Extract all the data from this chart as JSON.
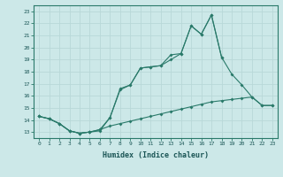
{
  "xlabel": "Humidex (Indice chaleur)",
  "bg_color": "#cce8e8",
  "grid_color": "#b8d8d8",
  "line_color": "#2a7a6a",
  "xlim": [
    -0.5,
    23.5
  ],
  "ylim": [
    12.5,
    23.5
  ],
  "xticks": [
    0,
    1,
    2,
    3,
    4,
    5,
    6,
    7,
    8,
    9,
    10,
    11,
    12,
    13,
    14,
    15,
    16,
    17,
    18,
    19,
    20,
    21,
    22,
    23
  ],
  "yticks": [
    13,
    14,
    15,
    16,
    17,
    18,
    19,
    20,
    21,
    22,
    23
  ],
  "line1_x": [
    0,
    1,
    2,
    3,
    4,
    5,
    6,
    7,
    8,
    9,
    10,
    11,
    12,
    13,
    14,
    15,
    16,
    17,
    18
  ],
  "line1_y": [
    14.3,
    14.1,
    13.7,
    13.1,
    12.9,
    13.0,
    13.1,
    14.2,
    16.6,
    16.9,
    18.3,
    18.4,
    18.5,
    19.4,
    19.5,
    21.8,
    21.1,
    22.7,
    19.2
  ],
  "line2_x": [
    0,
    1,
    2,
    3,
    4,
    5,
    6,
    7,
    8,
    9,
    10,
    11,
    12,
    13,
    14,
    15,
    16,
    17,
    18,
    19,
    20,
    21,
    22,
    23
  ],
  "line2_y": [
    14.3,
    14.1,
    13.7,
    13.1,
    12.9,
    13.0,
    13.2,
    14.2,
    16.5,
    16.9,
    18.3,
    18.4,
    18.5,
    19.0,
    19.5,
    21.8,
    21.1,
    22.7,
    19.2,
    17.8,
    16.9,
    15.9,
    15.2,
    15.2
  ],
  "line3_x": [
    0,
    1,
    2,
    3,
    4,
    5,
    6,
    7,
    8,
    9,
    10,
    11,
    12,
    13,
    14,
    15,
    16,
    17,
    18,
    19,
    20,
    21,
    22,
    23
  ],
  "line3_y": [
    14.3,
    14.1,
    13.7,
    13.1,
    12.9,
    13.0,
    13.2,
    13.5,
    13.7,
    13.9,
    14.1,
    14.3,
    14.5,
    14.7,
    14.9,
    15.1,
    15.3,
    15.5,
    15.6,
    15.7,
    15.8,
    15.9,
    15.2,
    15.2
  ]
}
